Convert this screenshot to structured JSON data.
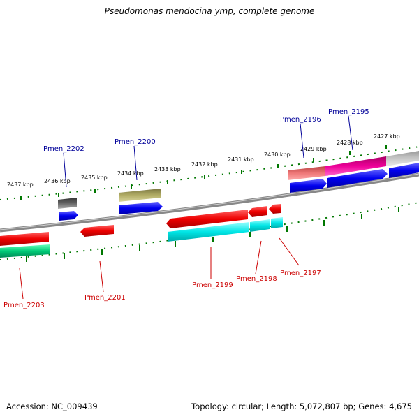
{
  "title": "Pseudomonas mendocina ymp, complete genome",
  "accession": "Accession: NC_009439",
  "topology": "Topology: circular; Length: 5,072,807 bp; Genes: 4,675",
  "ticks": [
    "2437 kbp",
    "2436 kbp",
    "2435 kbp",
    "2434 kbp",
    "2433 kbp",
    "2432 kbp",
    "2431 kbp",
    "2430 kbp",
    "2429 kbp",
    "2428 kbp",
    "2427 kbp"
  ],
  "genes": {
    "top": [
      "Pmen_2202",
      "Pmen_2200",
      "Pmen_2196",
      "Pmen_2195"
    ],
    "bottom": [
      "Pmen_2203",
      "Pmen_2201",
      "Pmen_2199",
      "Pmen_2198",
      "Pmen_2197"
    ]
  },
  "colors": {
    "backbone": "#808080",
    "tick": "#007700",
    "forward_cds": "#0000ee",
    "reverse_cds": "#ee0000",
    "rna_cyan": "#00e5e5",
    "rna_green": "#00cc77",
    "gray_gene": "#666666",
    "khaki_gene": "#b2ad66",
    "pink_gene": "#ee0099",
    "salmon_gene": "#ee7777",
    "silver_gene": "#c8c8c8",
    "label_top": "#000099",
    "label_bottom": "#cc0000"
  }
}
